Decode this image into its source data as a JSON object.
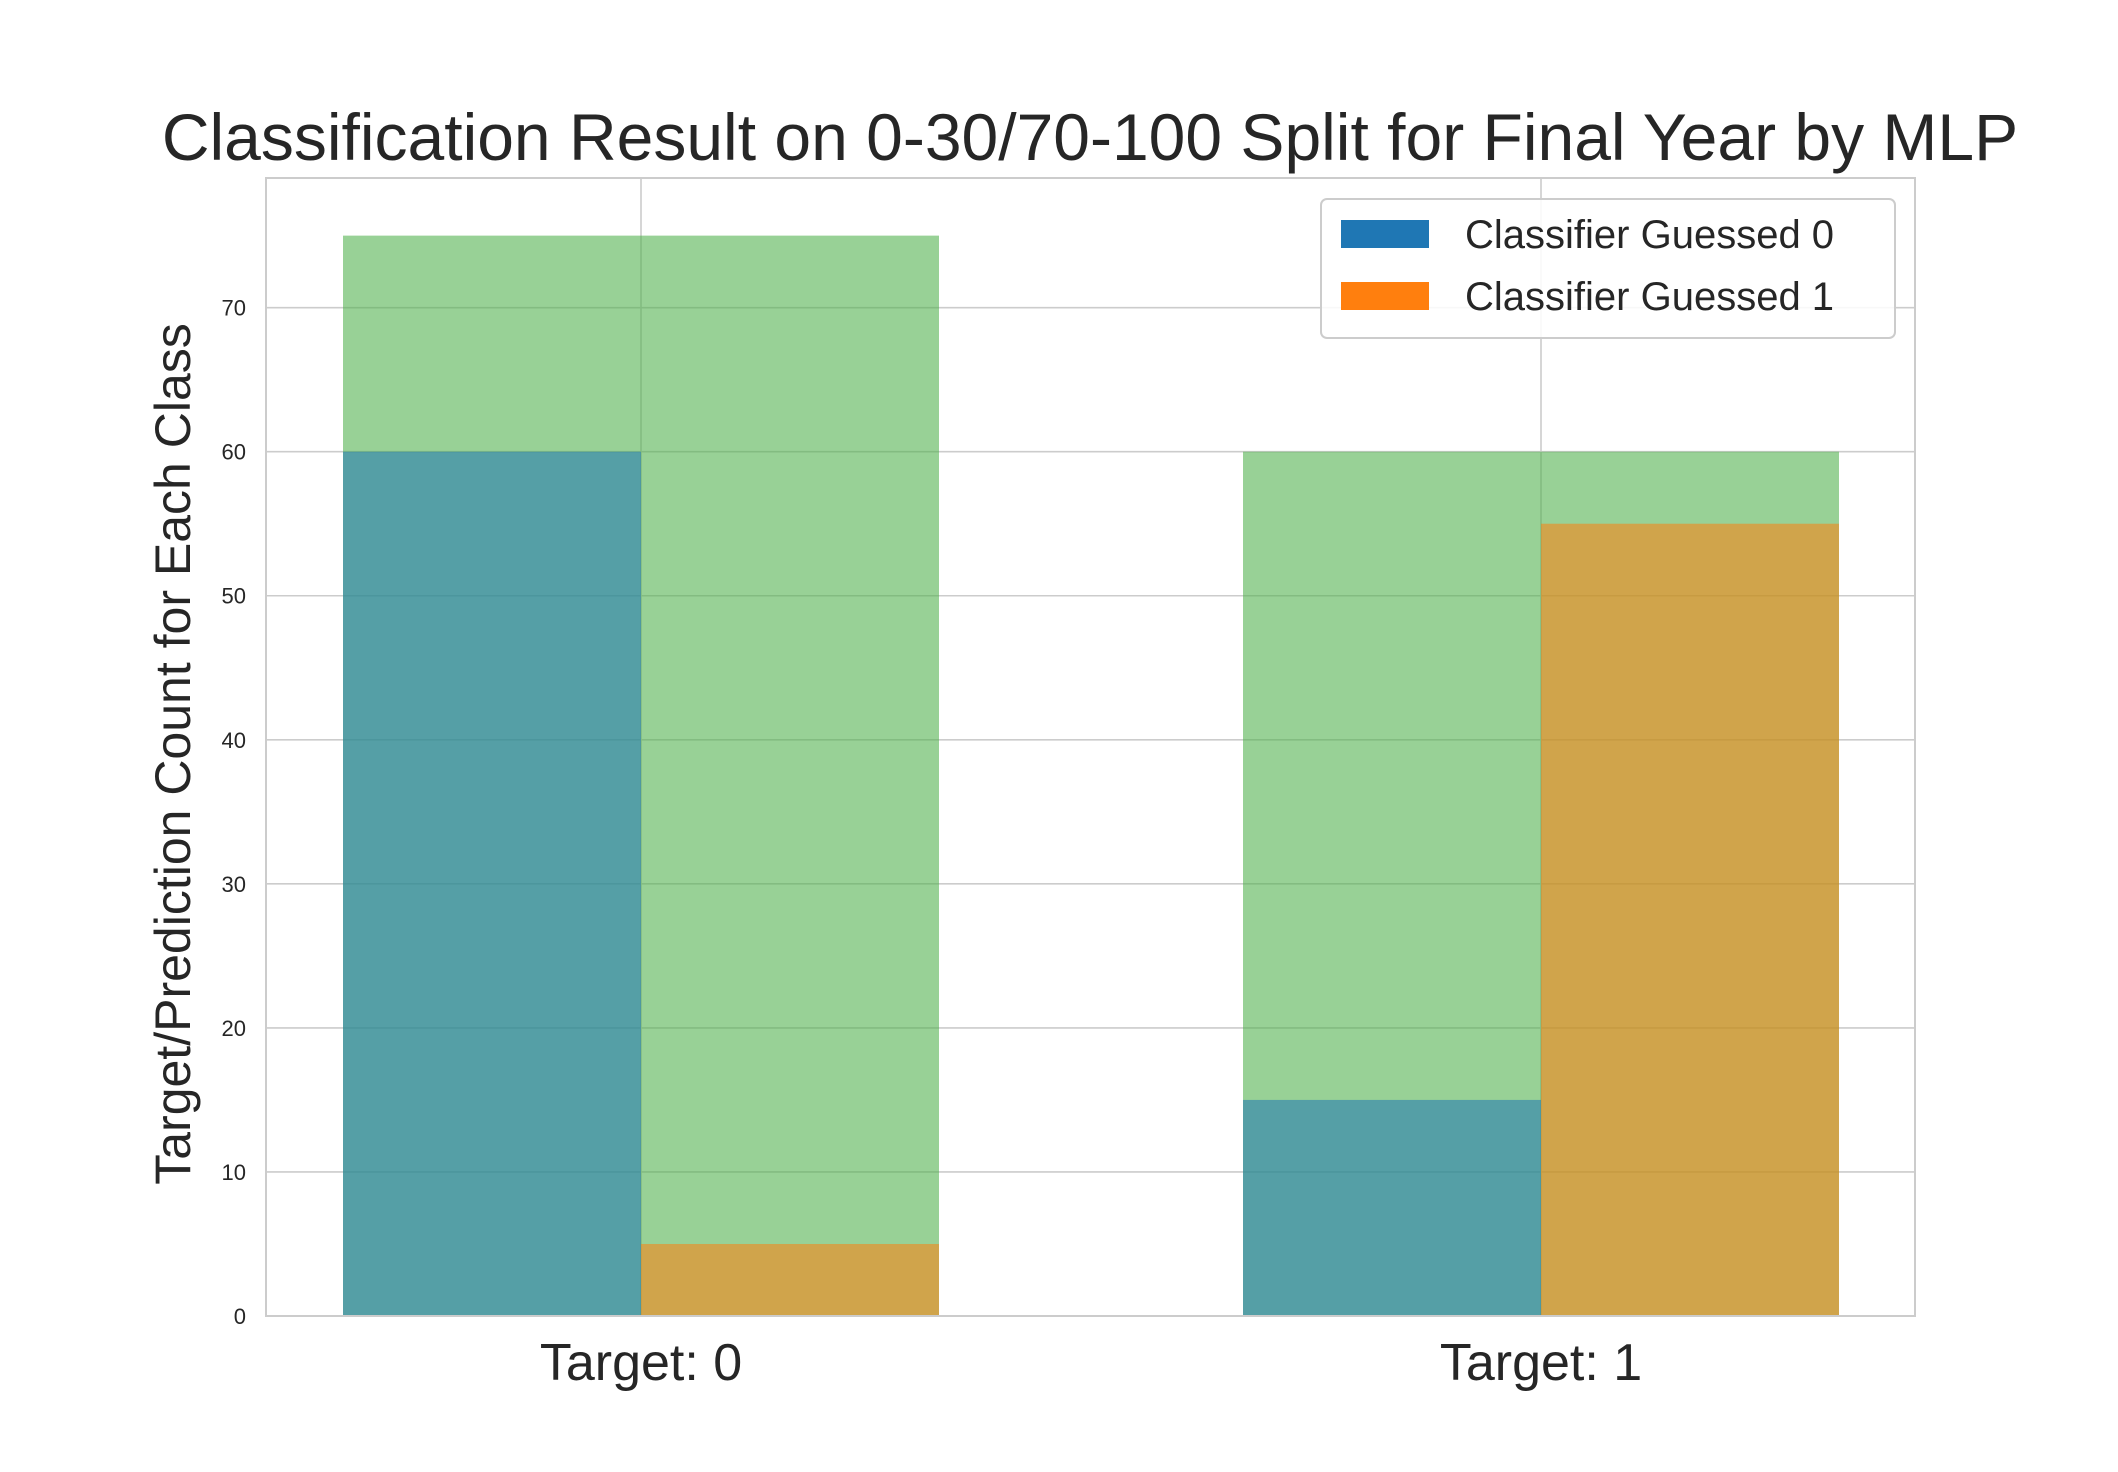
{
  "chart_data": {
    "type": "bar",
    "title": "Classification Result on 0-30/70-100 Split for Final Year by MLP",
    "xlabel": "",
    "ylabel": "Target/Prediction Count for Each Class",
    "categories": [
      "Target: 0",
      "Target: 1"
    ],
    "ylim": [
      0,
      79
    ],
    "yticks": [
      0,
      10,
      20,
      30,
      40,
      50,
      60,
      70
    ],
    "grid": true,
    "legend_placement": "top-right",
    "target_totals": {
      "color": "#4daf4a",
      "values": [
        75,
        60
      ]
    },
    "series": [
      {
        "name": "Classifier Guessed 0",
        "color": "#1f77b4",
        "values": [
          60,
          15
        ]
      },
      {
        "name": "Classifier Guessed 1",
        "color": "#ff7f0e",
        "values": [
          5,
          55
        ]
      }
    ]
  }
}
